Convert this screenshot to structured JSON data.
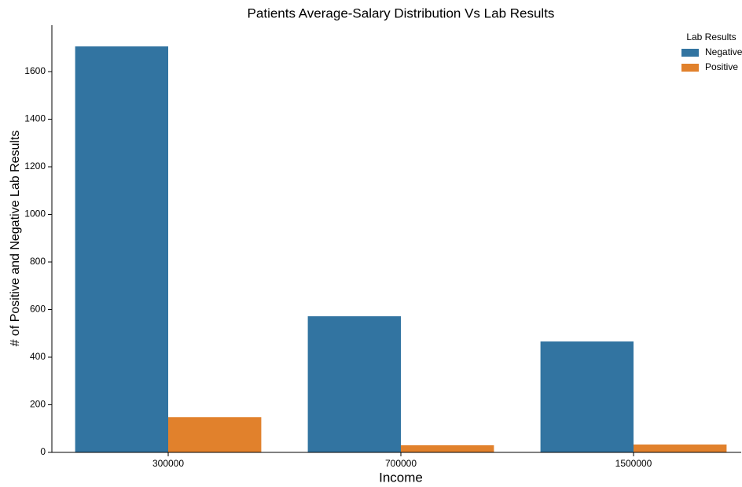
{
  "chart_data": {
    "type": "bar",
    "title": "Patients Average-Salary Distribution Vs Lab Results",
    "xlabel": "Income",
    "ylabel": "# of Positive and Negative Lab Results",
    "categories": [
      "300000",
      "700000",
      "1500000"
    ],
    "series": [
      {
        "name": "Negative",
        "color": "#3274a1",
        "values": [
          1706,
          572,
          466
        ]
      },
      {
        "name": "Positive",
        "color": "#e1812c",
        "values": [
          148,
          30,
          33
        ]
      }
    ],
    "legend_title": "Lab Results",
    "legend": "upper right",
    "ylim": [
      0,
      1795
    ],
    "yticks": [
      0,
      200,
      400,
      600,
      800,
      1000,
      1200,
      1400,
      1600
    ]
  }
}
